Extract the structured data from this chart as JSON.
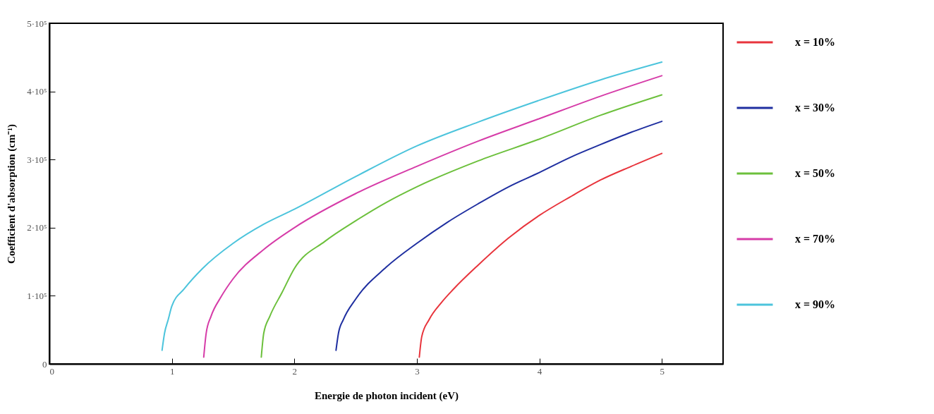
{
  "chart_data": {
    "type": "line",
    "xlabel": "Energie de photon incident (eV)",
    "ylabel": "Coefficient d'absorption (cm⁻¹)",
    "xlim": [
      0,
      5.5
    ],
    "xticks": [
      0,
      1,
      2,
      3,
      4,
      5
    ],
    "ylim": [
      0,
      500000
    ],
    "yticks": [
      0,
      {
        "value": 100000,
        "label": "1·10⁵"
      },
      {
        "value": 200000,
        "label": "2·10⁵"
      },
      {
        "value": 300000,
        "label": "3·10⁵"
      },
      {
        "value": 400000,
        "label": "4·10⁵"
      },
      {
        "value": 500000,
        "label": "5·10⁵"
      }
    ],
    "grid": false,
    "legend": "right",
    "marker": "none",
    "line_style": "solid",
    "series": [
      {
        "name": "x = 10%",
        "color": "#e8343c",
        "x": [
          3.02,
          3.04,
          3.1,
          3.2,
          3.3,
          3.5,
          3.75,
          4,
          4.25,
          4.5,
          4.75,
          5
        ],
        "values": [
          10000,
          40000,
          65000,
          90000,
          110000,
          145000,
          185000,
          218000,
          245000,
          270000,
          290000,
          309000
        ]
      },
      {
        "name": "x = 30%",
        "color": "#1f2fa0",
        "x": [
          2.34,
          2.36,
          2.4,
          2.5,
          2.75,
          3,
          3.25,
          3.5,
          3.75,
          4,
          4.25,
          4.5,
          4.75,
          5
        ],
        "values": [
          20000,
          45000,
          65000,
          95000,
          142000,
          177000,
          208000,
          235000,
          260000,
          281000,
          303000,
          322000,
          340000,
          356000
        ]
      },
      {
        "name": "x = 50%",
        "color": "#6cc03c",
        "x": [
          1.73,
          1.75,
          1.8,
          1.9,
          2,
          2.25,
          2.5,
          2.75,
          3,
          3.5,
          4,
          4.5,
          5
        ],
        "values": [
          10000,
          45000,
          70000,
          105000,
          140000,
          180000,
          210000,
          237000,
          260000,
          298000,
          330000,
          365000,
          395000
        ]
      },
      {
        "name": "x = 70%",
        "color": "#d63ca8",
        "x": [
          1.26,
          1.28,
          1.32,
          1.4,
          1.5,
          1.75,
          2,
          2.5,
          3,
          3.5,
          4,
          4.5,
          5
        ],
        "values": [
          10000,
          45000,
          70000,
          98000,
          125000,
          168000,
          200000,
          250000,
          290000,
          327000,
          360000,
          393000,
          423000
        ]
      },
      {
        "name": "x = 90%",
        "color": "#4cc4dc",
        "x": [
          0.92,
          0.94,
          0.97,
          1,
          1.1,
          1.25,
          1.5,
          1.75,
          2,
          2.5,
          3,
          3.5,
          4,
          4.5,
          5
        ],
        "values": [
          20000,
          45000,
          65000,
          85000,
          110000,
          140000,
          177000,
          205000,
          227000,
          275000,
          320000,
          355000,
          387000,
          417000,
          443000
        ]
      }
    ]
  }
}
